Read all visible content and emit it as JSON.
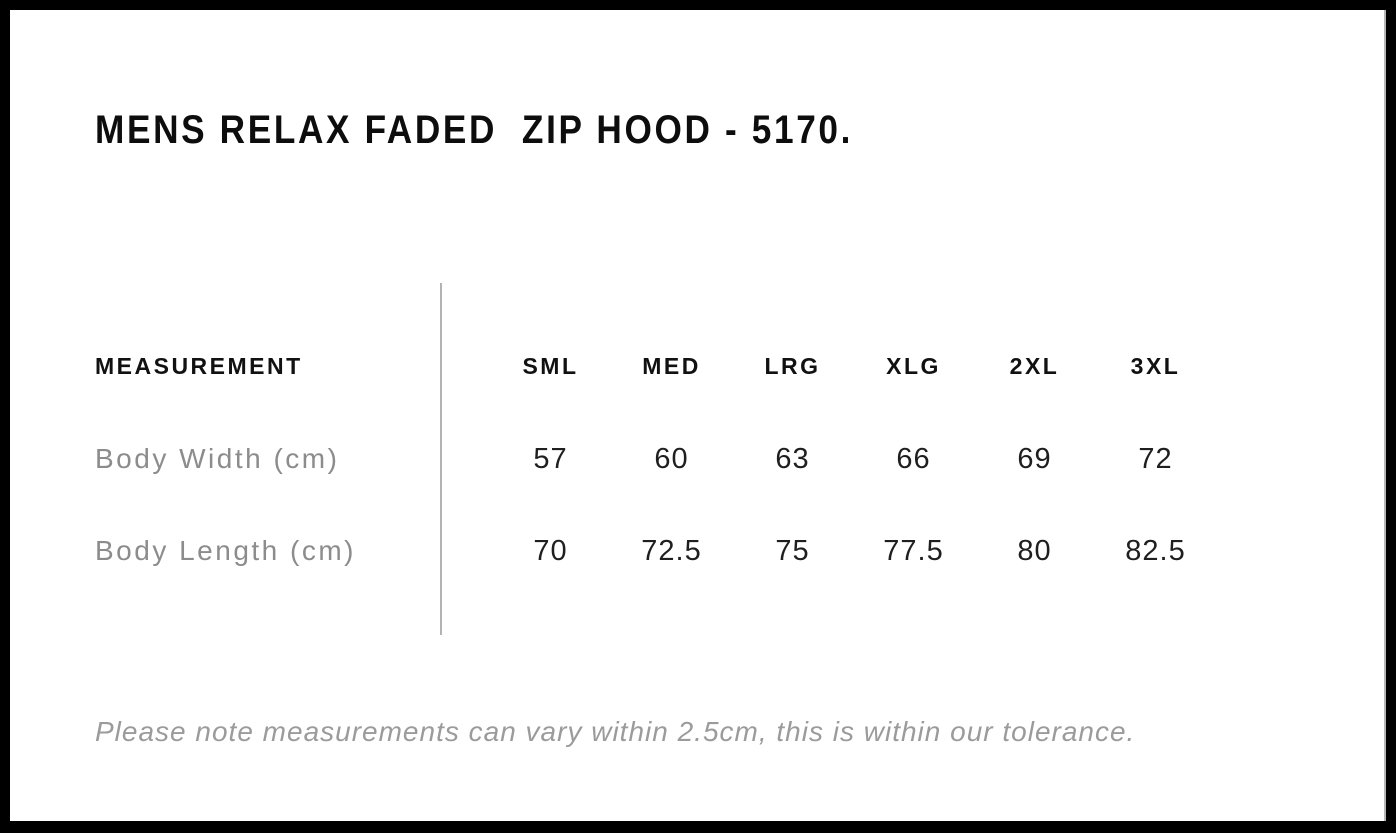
{
  "title": "MENS RELAX FADED  ZIP HOOD - 5170.",
  "note": "Please note measurements can vary within 2.5cm, this is within our tolerance.",
  "table": {
    "measurement_header": "MEASUREMENT",
    "sizes": [
      "SML",
      "MED",
      "LRG",
      "XLG",
      "2XL",
      "3XL"
    ],
    "rows": [
      {
        "label": "Body Width (cm)",
        "values": [
          "57",
          "60",
          "63",
          "66",
          "69",
          "72"
        ]
      },
      {
        "label": "Body Length (cm)",
        "values": [
          "70",
          "72.5",
          "75",
          "77.5",
          "80",
          "82.5"
        ]
      }
    ]
  },
  "chart_data": {
    "type": "table",
    "title": "MENS RELAX FADED  ZIP HOOD - 5170.",
    "columns": [
      "MEASUREMENT",
      "SML",
      "MED",
      "LRG",
      "XLG",
      "2XL",
      "3XL"
    ],
    "rows": [
      [
        "Body Width (cm)",
        57,
        60,
        63,
        66,
        69,
        72
      ],
      [
        "Body Length (cm)",
        70,
        72.5,
        75,
        77.5,
        80,
        82.5
      ]
    ],
    "footnote": "Please note measurements can vary within 2.5cm, this is within our tolerance.",
    "layout_hints": {
      "header_style": "bold uppercase",
      "row_label_color": "gray",
      "divider_between_labels_and_values": true
    }
  },
  "colors": {
    "background": "#ffffff",
    "frame_border": "#000000",
    "title_text": "#0d0d0d",
    "header_text": "#111111",
    "row_label_text": "#8c8c8c",
    "value_text": "#1f1f1f",
    "divider": "#b3b3b3",
    "note_text": "#9b9b9b"
  }
}
